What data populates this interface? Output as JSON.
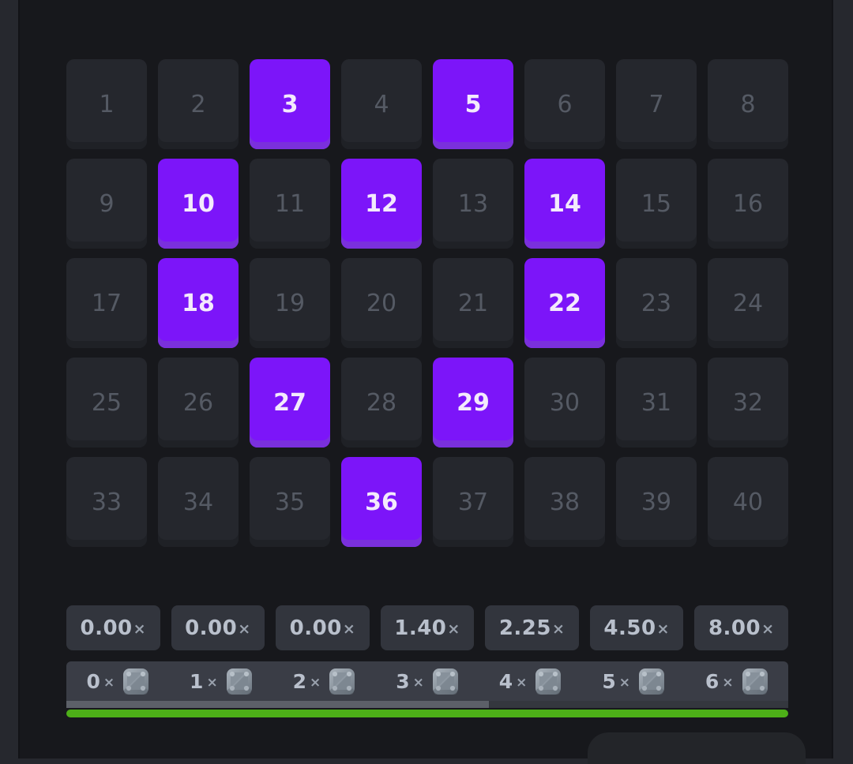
{
  "theme": {
    "page_bg": "#26282e",
    "game_bg": "#17181c",
    "tile_bg": "#25272d",
    "tile_lip": "#1f2126",
    "tile_text": "#555a64",
    "selected_bg": "#7c15f9",
    "selected_lip": "#7a30dc",
    "selected_text": "#f3eafc",
    "chip_bg": "#32353d",
    "chip_text": "#b9c0cc",
    "times_text": "#99a1ad",
    "hits_bar_bg": "#3a3d46",
    "scroll_track": "#34373e",
    "scroll_thumb": "#5c6068",
    "progress_green": "#4daf18",
    "panel_bg": "#232529"
  },
  "grid": {
    "numbers": [
      1,
      2,
      3,
      4,
      5,
      6,
      7,
      8,
      9,
      10,
      11,
      12,
      13,
      14,
      15,
      16,
      17,
      18,
      19,
      20,
      21,
      22,
      23,
      24,
      25,
      26,
      27,
      28,
      29,
      30,
      31,
      32,
      33,
      34,
      35,
      36,
      37,
      38,
      39,
      40
    ],
    "selected": [
      3,
      5,
      10,
      12,
      14,
      18,
      22,
      27,
      29,
      36
    ]
  },
  "paytable": {
    "multipliers": [
      {
        "value": "0.00",
        "suffix": "×"
      },
      {
        "value": "0.00",
        "suffix": "×"
      },
      {
        "value": "0.00",
        "suffix": "×"
      },
      {
        "value": "1.40",
        "suffix": "×"
      },
      {
        "value": "2.25",
        "suffix": "×"
      },
      {
        "value": "4.50",
        "suffix": "×"
      },
      {
        "value": "8.00",
        "suffix": "×"
      }
    ],
    "hits_legend": [
      {
        "count": "0",
        "suffix": "×",
        "icon": "gem-icon"
      },
      {
        "count": "1",
        "suffix": "×",
        "icon": "gem-icon"
      },
      {
        "count": "2",
        "suffix": "×",
        "icon": "gem-icon"
      },
      {
        "count": "3",
        "suffix": "×",
        "icon": "gem-icon"
      },
      {
        "count": "4",
        "suffix": "×",
        "icon": "gem-icon"
      },
      {
        "count": "5",
        "suffix": "×",
        "icon": "gem-icon"
      },
      {
        "count": "6",
        "suffix": "×",
        "icon": "gem-icon"
      }
    ],
    "scrollbar_thumb_percent": 58.5,
    "progress_percent": 100
  }
}
